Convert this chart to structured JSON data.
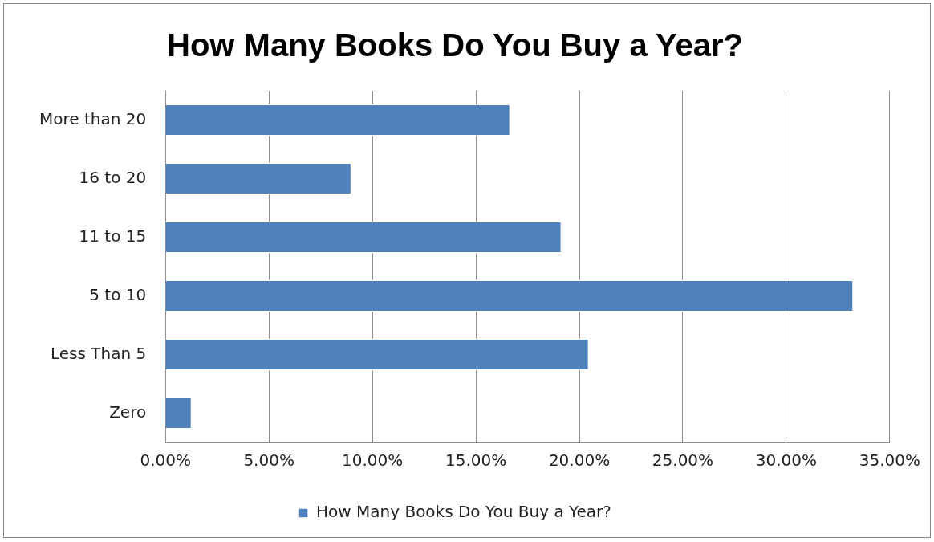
{
  "chart_data": {
    "type": "bar",
    "orientation": "horizontal",
    "title": "How Many Books Do You Buy a Year?",
    "categories": [
      "More than 20",
      "16 to 20",
      "11 to 15",
      "5 to 10",
      "Less Than 5",
      "Zero"
    ],
    "series": [
      {
        "name": "How Many Books Do You Buy a Year?",
        "color": "#4f81bd",
        "values": [
          16.67,
          9.0,
          19.15,
          33.25,
          20.47,
          1.28
        ]
      }
    ],
    "xlim": [
      0,
      35
    ],
    "xticks": [
      {
        "value": 0,
        "label": "0.00%"
      },
      {
        "value": 5,
        "label": "5.00%"
      },
      {
        "value": 10,
        "label": "10.00%"
      },
      {
        "value": 15,
        "label": "15.00%"
      },
      {
        "value": 20,
        "label": "20.00%"
      },
      {
        "value": 25,
        "label": "25.00%"
      },
      {
        "value": 30,
        "label": "30.00%"
      },
      {
        "value": 35,
        "label": "35.00%"
      }
    ],
    "grid": "x",
    "legend": "bottom"
  }
}
